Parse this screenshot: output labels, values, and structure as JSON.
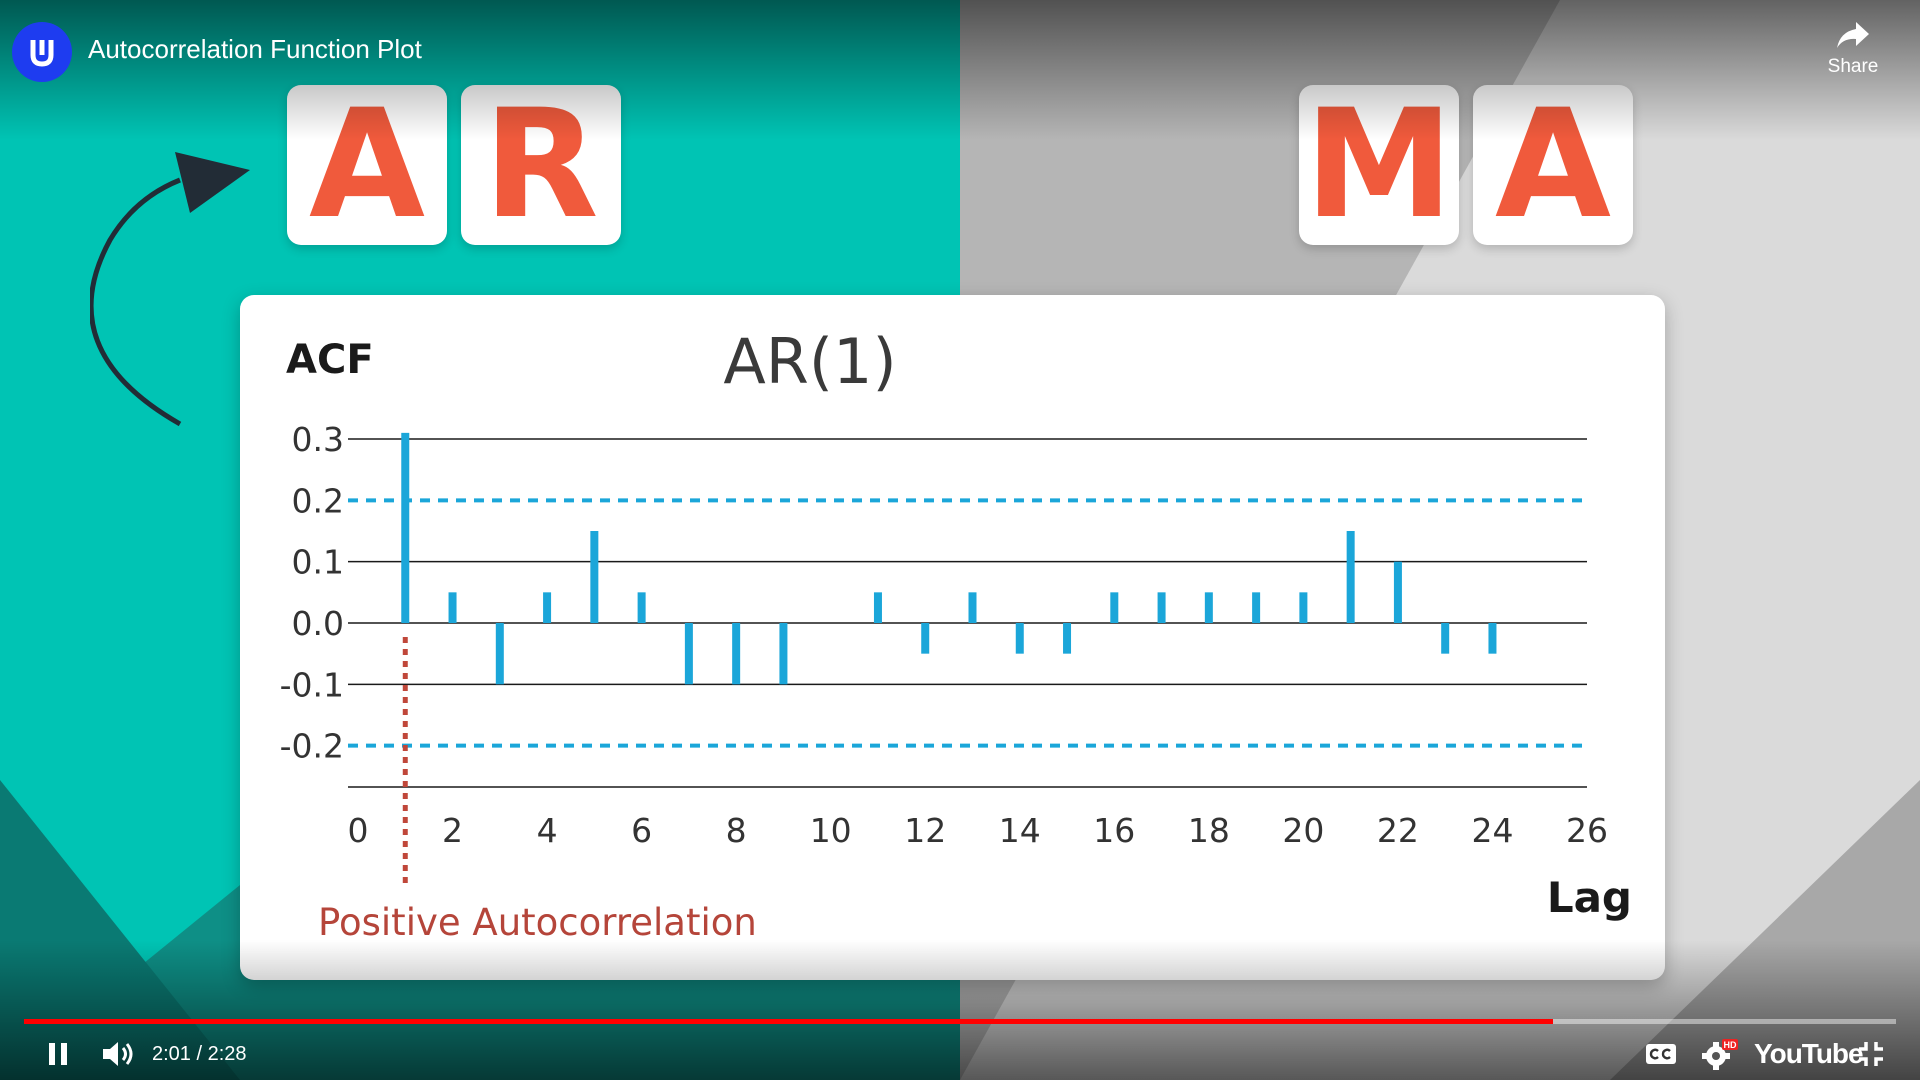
{
  "player": {
    "video_title": "Autocorrelation Function Plot",
    "share_label": "Share",
    "current_time": "2:01",
    "separator": "/",
    "duration": "2:28",
    "progress_fraction": 0.817,
    "youtube_logo": "YouTube",
    "hd_badge": "HD",
    "icons": [
      "udacity-logo-icon",
      "share-icon",
      "pause-icon",
      "volume-icon",
      "captions-icon",
      "settings-icon",
      "exit-fullscreen-icon"
    ]
  },
  "slide": {
    "left_tiles": [
      "A",
      "R"
    ],
    "right_tiles": [
      "M",
      "A"
    ],
    "colors": {
      "teal": "#00c4b4",
      "gray": "#dadada",
      "tile_letter": "#f05a3c",
      "bar": "#1ba6d9",
      "annotation": "#b5453a"
    }
  },
  "chart_data": {
    "type": "bar",
    "title": "AR(1)",
    "ylabel": "ACF",
    "xlabel": "Lag",
    "ylim": [
      -0.27,
      0.3
    ],
    "xlim": [
      0,
      26
    ],
    "yticks": [
      "0.3",
      "0.2",
      "0.1",
      "0.0",
      "-0.1",
      "-0.2"
    ],
    "ytick_values": [
      0.3,
      0.2,
      0.1,
      0.0,
      -0.1,
      -0.2
    ],
    "xticks": [
      "0",
      "2",
      "4",
      "6",
      "8",
      "10",
      "12",
      "14",
      "16",
      "18",
      "20",
      "22",
      "24",
      "26"
    ],
    "xtick_values": [
      0,
      2,
      4,
      6,
      8,
      10,
      12,
      14,
      16,
      18,
      20,
      22,
      24,
      26
    ],
    "lags": [
      1,
      2,
      3,
      4,
      5,
      6,
      7,
      8,
      9,
      11,
      12,
      13,
      14,
      15,
      16,
      17,
      18,
      19,
      20,
      21,
      22,
      23,
      24
    ],
    "values": [
      0.31,
      0.05,
      -0.1,
      0.05,
      0.15,
      0.05,
      -0.1,
      -0.1,
      -0.1,
      0.05,
      -0.05,
      0.05,
      -0.05,
      -0.05,
      0.05,
      0.05,
      0.05,
      0.05,
      0.05,
      0.15,
      0.1,
      -0.05,
      -0.05
    ],
    "confidence_bounds": [
      0.2,
      -0.2
    ],
    "annotation": "Positive Autocorrelation",
    "annotation_lag": 1
  }
}
